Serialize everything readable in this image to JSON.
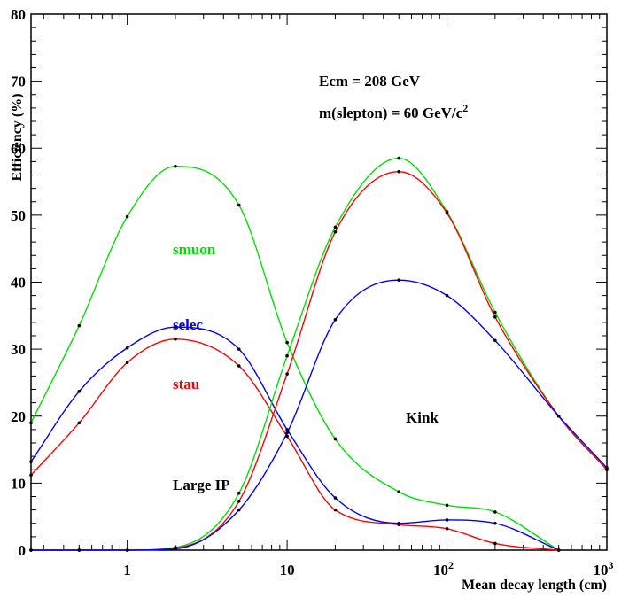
{
  "chart_data": {
    "type": "line",
    "x_scale": "log",
    "xlabel": "Mean decay length (cm)",
    "ylabel": "Efficiency (%)",
    "xlim": [
      0.25,
      1000
    ],
    "ylim": [
      0,
      80
    ],
    "grid": false,
    "x_ticks": [
      {
        "v": 1,
        "label": "1"
      },
      {
        "v": 10,
        "label": "10"
      },
      {
        "v": 100,
        "label": "10",
        "sup": "2"
      },
      {
        "v": 1000,
        "label": "10",
        "sup": "3"
      }
    ],
    "y_ticks": [
      0,
      10,
      20,
      30,
      40,
      50,
      60,
      70,
      80
    ],
    "annotations": [
      {
        "text": "Ecm = 208 GeV"
      },
      {
        "text": "m(slepton) = 60 GeV/c",
        "sup": "2"
      },
      {
        "text": "Kink"
      },
      {
        "text": "Large IP"
      }
    ],
    "series": [
      {
        "name": "smuon",
        "color": "#00e000",
        "group": "Large IP",
        "points": [
          [
            0.25,
            19
          ],
          [
            0.5,
            33.5
          ],
          [
            1,
            49.8
          ],
          [
            2,
            57.3
          ],
          [
            5,
            51.5
          ],
          [
            10,
            31
          ],
          [
            20,
            16.6
          ],
          [
            50,
            8.7
          ],
          [
            100,
            6.7
          ],
          [
            200,
            5.7
          ],
          [
            500,
            0
          ]
        ]
      },
      {
        "name": "selec",
        "color": "#0000ff",
        "group": "Large IP",
        "points": [
          [
            0.25,
            13.2
          ],
          [
            0.5,
            23.7
          ],
          [
            1,
            30.2
          ],
          [
            2,
            33.3
          ],
          [
            5,
            30
          ],
          [
            10,
            18
          ],
          [
            20,
            7.8
          ],
          [
            50,
            4
          ],
          [
            100,
            4.5
          ],
          [
            200,
            4
          ],
          [
            500,
            0
          ]
        ]
      },
      {
        "name": "stau",
        "color": "#ff0000",
        "group": "Large IP",
        "points": [
          [
            0.25,
            11.2
          ],
          [
            0.5,
            19
          ],
          [
            1,
            28
          ],
          [
            2,
            31.5
          ],
          [
            5,
            27.5
          ],
          [
            10,
            17
          ],
          [
            20,
            6
          ],
          [
            50,
            3.8
          ],
          [
            100,
            3.2
          ],
          [
            200,
            1
          ],
          [
            500,
            0
          ]
        ]
      },
      {
        "name": "",
        "color": "#00e000",
        "group": "Kink",
        "points": [
          [
            0.25,
            0
          ],
          [
            0.5,
            0
          ],
          [
            1,
            0
          ],
          [
            2,
            0.4
          ],
          [
            5,
            8.5
          ],
          [
            10,
            29
          ],
          [
            20,
            48.2
          ],
          [
            50,
            58.5
          ],
          [
            100,
            50.5
          ],
          [
            200,
            35.5
          ],
          [
            500,
            20
          ],
          [
            1000,
            12
          ]
        ]
      },
      {
        "name": "",
        "color": "#ff0000",
        "group": "Kink",
        "points": [
          [
            0.25,
            0
          ],
          [
            0.5,
            0
          ],
          [
            1,
            0
          ],
          [
            2,
            0.3
          ],
          [
            5,
            7.3
          ],
          [
            10,
            26.3
          ],
          [
            20,
            47.5
          ],
          [
            50,
            56.5
          ],
          [
            100,
            50.3
          ],
          [
            200,
            34.8
          ],
          [
            500,
            20
          ],
          [
            1000,
            12
          ]
        ]
      },
      {
        "name": "",
        "color": "#0000ff",
        "group": "Kink",
        "points": [
          [
            0.25,
            0
          ],
          [
            0.5,
            0
          ],
          [
            1,
            0
          ],
          [
            2,
            0.2
          ],
          [
            5,
            6
          ],
          [
            10,
            17.5
          ],
          [
            20,
            34.4
          ],
          [
            50,
            40.3
          ],
          [
            100,
            38
          ],
          [
            200,
            31.3
          ],
          [
            500,
            20
          ],
          [
            1000,
            12.3
          ]
        ]
      }
    ],
    "series_labels": [
      {
        "text": "smuon",
        "color": "#00e000"
      },
      {
        "text": "selec",
        "color": "#0000ff"
      },
      {
        "text": "stau",
        "color": "#ff0000"
      }
    ]
  }
}
